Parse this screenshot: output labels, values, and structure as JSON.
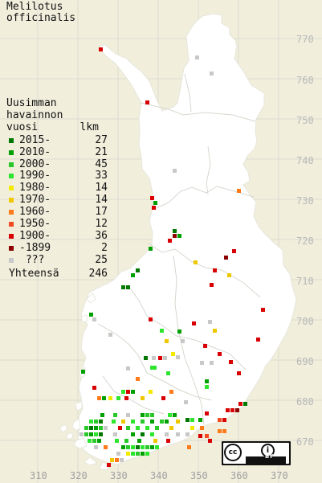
{
  "map": {
    "title_line_1": "Melilotus",
    "title_line_2": "officinalis",
    "legend_header_line_1": "Uusimman",
    "legend_header_line_2": "havainnon",
    "legend_header_year": "vuosi",
    "legend_header_count": "lkm",
    "total_label": "Yhteensä",
    "total_count": "246",
    "legend": [
      {
        "label": "2015-",
        "count": "27",
        "color": "#007800"
      },
      {
        "label": "2010-",
        "count": "21",
        "color": "#00a000"
      },
      {
        "label": "2000-",
        "count": "45",
        "color": "#28c828"
      },
      {
        "label": "1990-",
        "count": "33",
        "color": "#2ee52e"
      },
      {
        "label": "1980-",
        "count": "14",
        "color": "#f4ea00"
      },
      {
        "label": "1970-",
        "count": "14",
        "color": "#f0c800"
      },
      {
        "label": "1960-",
        "count": "17",
        "color": "#ff7a18"
      },
      {
        "label": "1950-",
        "count": "12",
        "color": "#f24b22"
      },
      {
        "label": "1900-",
        "count": "36",
        "color": "#d80000"
      },
      {
        "label": "-1899",
        "count": "2",
        "color": "#8b0000"
      },
      {
        "label": " ???",
        "count": "25",
        "color": "#c8c8c8"
      }
    ],
    "northing_labels": [
      "770",
      "760",
      "750",
      "740",
      "730",
      "720",
      "710",
      "700",
      "690",
      "680",
      "670"
    ],
    "easting_labels": [
      "310",
      "320",
      "330",
      "340",
      "350",
      "360",
      "370"
    ],
    "license_cc": "cc",
    "license_by": "BY",
    "license_icon": "creative-commons-icon",
    "by_icon": "attribution-icon"
  }
}
